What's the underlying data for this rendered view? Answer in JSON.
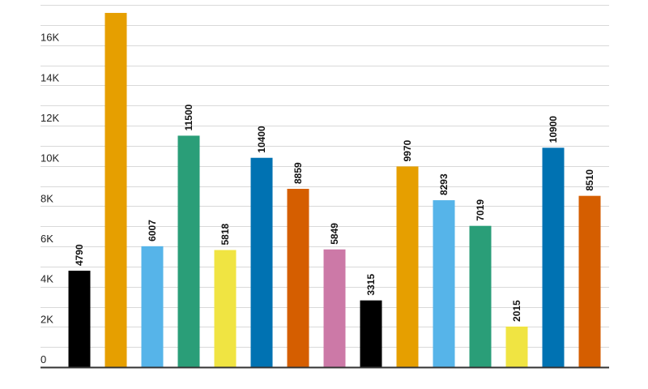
{
  "chart_data": {
    "type": "bar",
    "title": "",
    "xlabel": "",
    "ylabel": "",
    "ylim": [
      0,
      18000
    ],
    "grid": true,
    "y_ticks": [
      {
        "value": 0,
        "label": "0"
      },
      {
        "value": 2000,
        "label": "2K"
      },
      {
        "value": 4000,
        "label": "4K"
      },
      {
        "value": 6000,
        "label": "6K"
      },
      {
        "value": 8000,
        "label": "8K"
      },
      {
        "value": 10000,
        "label": "10K"
      },
      {
        "value": 12000,
        "label": "12K"
      },
      {
        "value": 14000,
        "label": "14K"
      },
      {
        "value": 16000,
        "label": "16K"
      }
    ],
    "values": [
      4790,
      17600,
      6007,
      11500,
      5818,
      10400,
      8859,
      5849,
      3315,
      9970,
      8293,
      7019,
      2015,
      10900,
      8510
    ],
    "data_labels": [
      "4790",
      "",
      "6007",
      "11500",
      "5818",
      "10400",
      "8859",
      "5849",
      "3315",
      "9970",
      "8293",
      "7019",
      "2015",
      "10900",
      "8510"
    ],
    "colors": [
      "#000000",
      "#e69f00",
      "#56b4e9",
      "#2a9e78",
      "#f0e442",
      "#0072b2",
      "#d55e00",
      "#cc79a7",
      "#000000",
      "#e69f00",
      "#56b4e9",
      "#2a9e78",
      "#f0e442",
      "#0072b2",
      "#d55e00"
    ]
  }
}
